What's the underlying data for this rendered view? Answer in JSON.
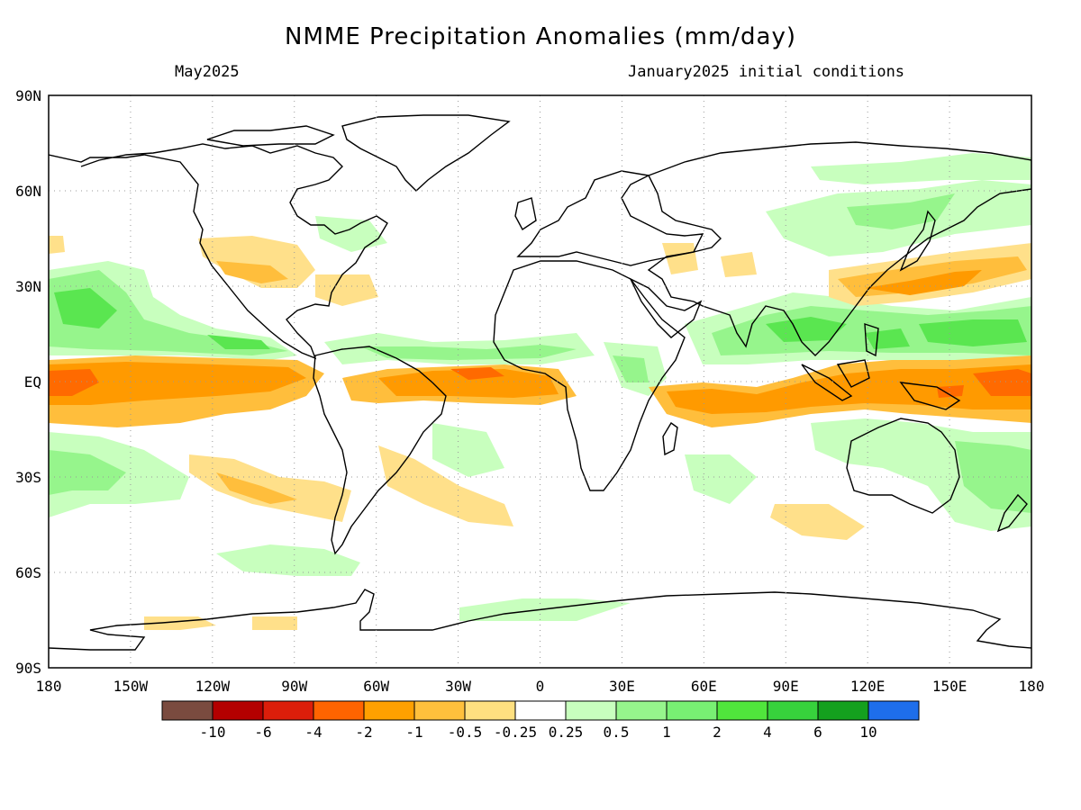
{
  "title": "NMME Precipitation Anomalies (mm/day)",
  "subtitle_left": "May2025",
  "subtitle_right": "January2025 initial conditions",
  "lat_labels": [
    "90N",
    "60N",
    "30N",
    "EQ",
    "30S",
    "60S",
    "90S"
  ],
  "lon_labels": [
    "180",
    "150W",
    "120W",
    "90W",
    "60W",
    "30W",
    "0",
    "30E",
    "60E",
    "90E",
    "120E",
    "150E",
    "180"
  ],
  "colorbar": {
    "colors": [
      "#7a4b3f",
      "#b40000",
      "#dc1e0a",
      "#ff6400",
      "#ffa000",
      "#ffc03c",
      "#ffe080",
      "#ffffff",
      "#c8ffbe",
      "#96f58c",
      "#78f073",
      "#50e63c",
      "#37d23c",
      "#14a01e",
      "#1e6eeb"
    ],
    "labels": [
      "-10",
      "-6",
      "-4",
      "-2",
      "-1",
      "-0.5",
      "-0.25",
      "0.25",
      "0.5",
      "1",
      "2",
      "4",
      "6",
      "10"
    ]
  },
  "colors": {
    "dry_strong": "#ff9a00",
    "dry_moderate": "#ffbe3c",
    "dry_light": "#ffe08a",
    "dry_extreme": "#ff6a00",
    "wet_light": "#c8ffbe",
    "wet_moderate": "#96f58c",
    "wet_strong": "#5ae650",
    "coast": "#000000"
  }
}
